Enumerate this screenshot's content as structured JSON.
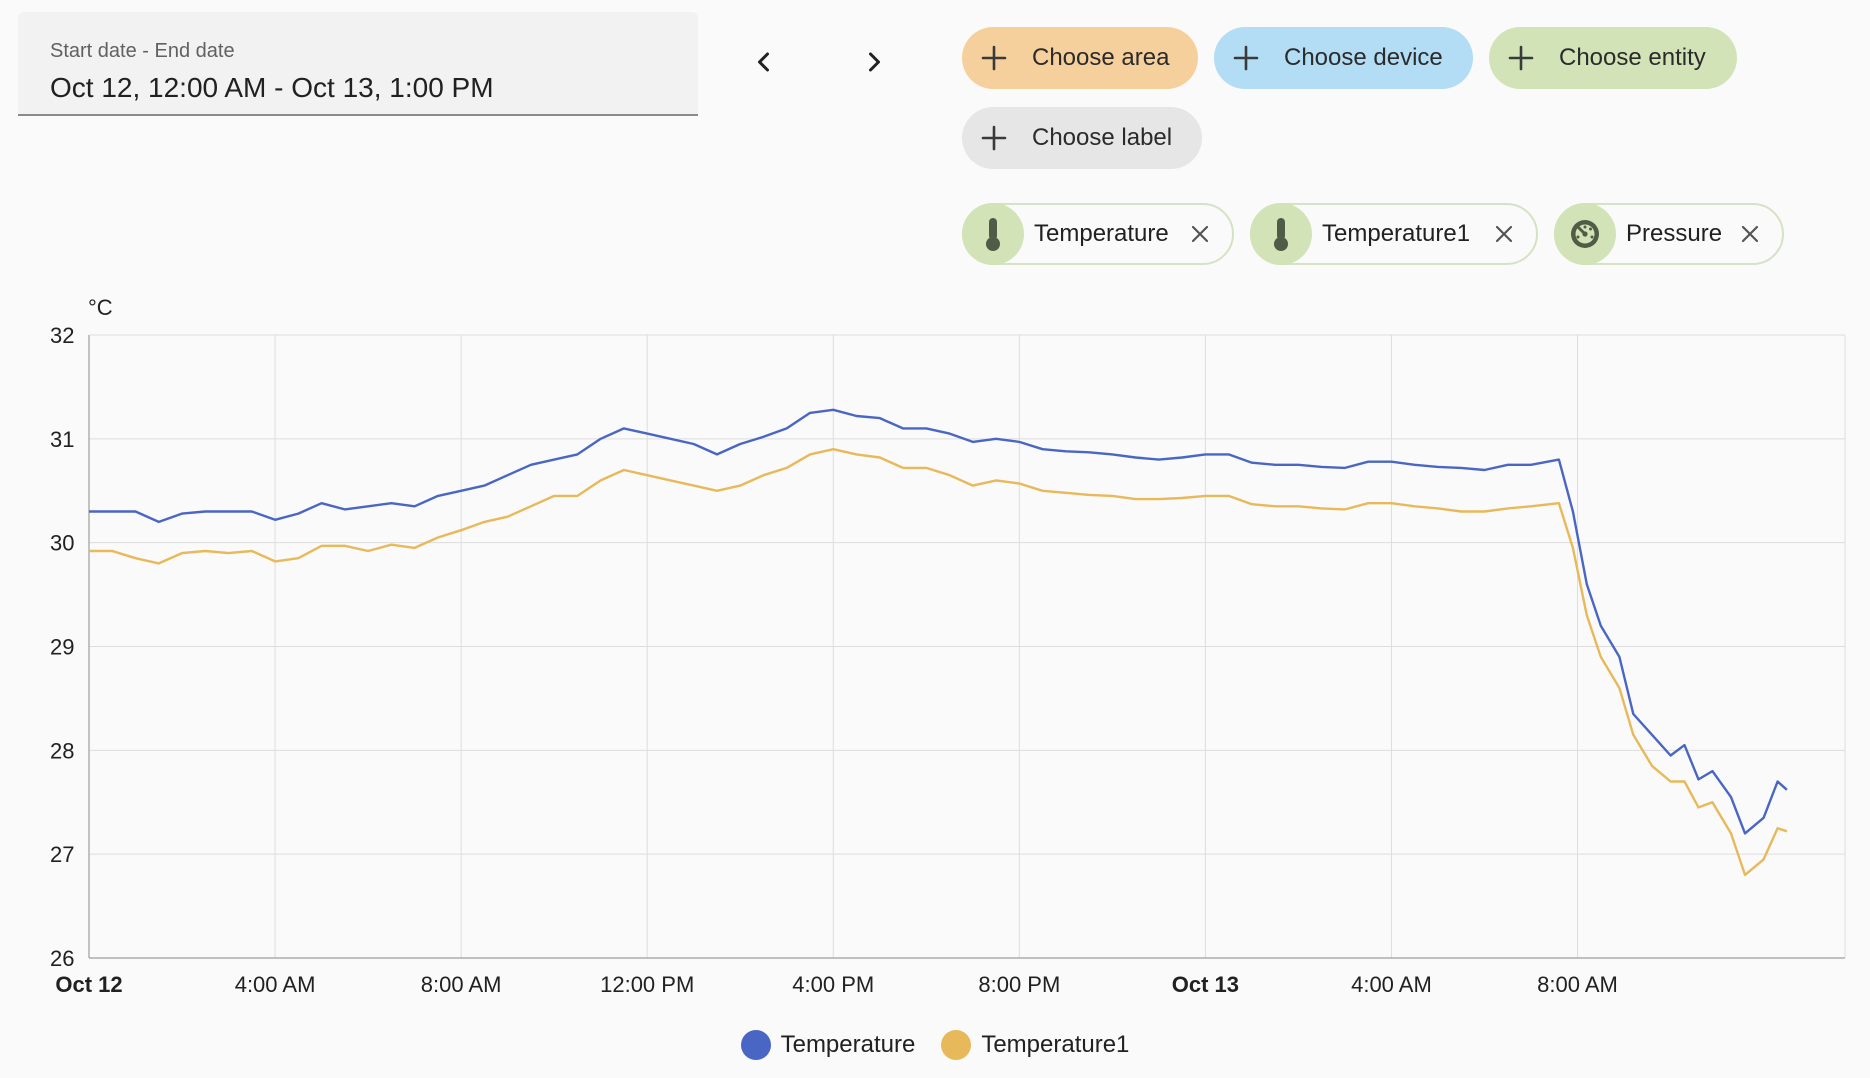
{
  "date_range": {
    "label": "Start date - End date",
    "value": "Oct 12, 12:00 AM - Oct 13, 1:00 PM"
  },
  "target_picker": {
    "choose_area": "Choose area",
    "choose_device": "Choose device",
    "choose_entity": "Choose entity",
    "choose_label": "Choose label"
  },
  "selected_entities": [
    {
      "label": "Temperature",
      "icon": "thermometer-icon"
    },
    {
      "label": "Temperature1",
      "icon": "thermometer-icon"
    },
    {
      "label": "Pressure",
      "icon": "gauge-icon"
    }
  ],
  "colors": {
    "area_chip": "#f6d09c",
    "device_chip": "#b3dcf5",
    "entity_chip": "#d2e3b8",
    "label_chip": "#e6e6e6",
    "series_temperature": "#4a66c4",
    "series_temperature1": "#e8b95a"
  },
  "chart_data": {
    "type": "line",
    "unit": "°C",
    "ylim": [
      26,
      32
    ],
    "yticks": [
      26,
      27,
      28,
      29,
      30,
      31,
      32
    ],
    "xlim_hours": [
      0,
      37.75
    ],
    "x_ticks": [
      {
        "hour": 0,
        "label": "Oct 12",
        "bold": true
      },
      {
        "hour": 4,
        "label": "4:00 AM",
        "bold": false
      },
      {
        "hour": 8,
        "label": "8:00 AM",
        "bold": false
      },
      {
        "hour": 12,
        "label": "12:00 PM",
        "bold": false
      },
      {
        "hour": 16,
        "label": "4:00 PM",
        "bold": false
      },
      {
        "hour": 20,
        "label": "8:00 PM",
        "bold": false
      },
      {
        "hour": 24,
        "label": "Oct 13",
        "bold": true
      },
      {
        "hour": 28,
        "label": "4:00 AM",
        "bold": false
      },
      {
        "hour": 32,
        "label": "8:00 AM",
        "bold": false
      }
    ],
    "grid": true,
    "legend_position": "bottom-center",
    "series": [
      {
        "name": "Temperature",
        "points": [
          [
            0,
            30.3
          ],
          [
            0.5,
            30.3
          ],
          [
            1.0,
            30.3
          ],
          [
            1.5,
            30.2
          ],
          [
            2.0,
            30.28
          ],
          [
            2.5,
            30.3
          ],
          [
            3.0,
            30.3
          ],
          [
            3.5,
            30.3
          ],
          [
            4.0,
            30.22
          ],
          [
            4.5,
            30.28
          ],
          [
            5.0,
            30.38
          ],
          [
            5.5,
            30.32
          ],
          [
            6.0,
            30.35
          ],
          [
            6.5,
            30.38
          ],
          [
            7.0,
            30.35
          ],
          [
            7.5,
            30.45
          ],
          [
            8.0,
            30.5
          ],
          [
            8.5,
            30.55
          ],
          [
            9.0,
            30.65
          ],
          [
            9.5,
            30.75
          ],
          [
            10.0,
            30.8
          ],
          [
            10.5,
            30.85
          ],
          [
            11.0,
            31.0
          ],
          [
            11.5,
            31.1
          ],
          [
            12.0,
            31.05
          ],
          [
            12.5,
            31.0
          ],
          [
            13.0,
            30.95
          ],
          [
            13.5,
            30.85
          ],
          [
            14.0,
            30.95
          ],
          [
            14.5,
            31.02
          ],
          [
            15.0,
            31.1
          ],
          [
            15.5,
            31.25
          ],
          [
            16.0,
            31.28
          ],
          [
            16.5,
            31.22
          ],
          [
            17.0,
            31.2
          ],
          [
            17.5,
            31.1
          ],
          [
            18.0,
            31.1
          ],
          [
            18.5,
            31.05
          ],
          [
            19.0,
            30.97
          ],
          [
            19.5,
            31.0
          ],
          [
            20.0,
            30.97
          ],
          [
            20.5,
            30.9
          ],
          [
            21.0,
            30.88
          ],
          [
            21.5,
            30.87
          ],
          [
            22.0,
            30.85
          ],
          [
            22.5,
            30.82
          ],
          [
            23.0,
            30.8
          ],
          [
            23.5,
            30.82
          ],
          [
            24.0,
            30.85
          ],
          [
            24.5,
            30.85
          ],
          [
            25.0,
            30.77
          ],
          [
            25.5,
            30.75
          ],
          [
            26.0,
            30.75
          ],
          [
            26.5,
            30.73
          ],
          [
            27.0,
            30.72
          ],
          [
            27.5,
            30.78
          ],
          [
            28.0,
            30.78
          ],
          [
            28.5,
            30.75
          ],
          [
            29.0,
            30.73
          ],
          [
            29.5,
            30.72
          ],
          [
            30.0,
            30.7
          ],
          [
            30.5,
            30.75
          ],
          [
            31.0,
            30.75
          ],
          [
            31.6,
            30.8
          ],
          [
            31.9,
            30.3
          ],
          [
            32.2,
            29.6
          ],
          [
            32.5,
            29.2
          ],
          [
            32.9,
            28.9
          ],
          [
            33.2,
            28.35
          ],
          [
            33.6,
            28.15
          ],
          [
            34.0,
            27.95
          ],
          [
            34.3,
            28.05
          ],
          [
            34.6,
            27.72
          ],
          [
            34.9,
            27.8
          ],
          [
            35.3,
            27.55
          ],
          [
            35.6,
            27.2
          ],
          [
            36.0,
            27.35
          ],
          [
            36.3,
            27.7
          ],
          [
            36.5,
            27.62
          ]
        ]
      },
      {
        "name": "Temperature1",
        "points": [
          [
            0,
            29.92
          ],
          [
            0.5,
            29.92
          ],
          [
            1.0,
            29.85
          ],
          [
            1.5,
            29.8
          ],
          [
            2.0,
            29.9
          ],
          [
            2.5,
            29.92
          ],
          [
            3.0,
            29.9
          ],
          [
            3.5,
            29.92
          ],
          [
            4.0,
            29.82
          ],
          [
            4.5,
            29.85
          ],
          [
            5.0,
            29.97
          ],
          [
            5.5,
            29.97
          ],
          [
            6.0,
            29.92
          ],
          [
            6.5,
            29.98
          ],
          [
            7.0,
            29.95
          ],
          [
            7.5,
            30.05
          ],
          [
            8.0,
            30.12
          ],
          [
            8.5,
            30.2
          ],
          [
            9.0,
            30.25
          ],
          [
            9.5,
            30.35
          ],
          [
            10.0,
            30.45
          ],
          [
            10.5,
            30.45
          ],
          [
            11.0,
            30.6
          ],
          [
            11.5,
            30.7
          ],
          [
            12.0,
            30.65
          ],
          [
            12.5,
            30.6
          ],
          [
            13.0,
            30.55
          ],
          [
            13.5,
            30.5
          ],
          [
            14.0,
            30.55
          ],
          [
            14.5,
            30.65
          ],
          [
            15.0,
            30.72
          ],
          [
            15.5,
            30.85
          ],
          [
            16.0,
            30.9
          ],
          [
            16.5,
            30.85
          ],
          [
            17.0,
            30.82
          ],
          [
            17.5,
            30.72
          ],
          [
            18.0,
            30.72
          ],
          [
            18.5,
            30.65
          ],
          [
            19.0,
            30.55
          ],
          [
            19.5,
            30.6
          ],
          [
            20.0,
            30.57
          ],
          [
            20.5,
            30.5
          ],
          [
            21.0,
            30.48
          ],
          [
            21.5,
            30.46
          ],
          [
            22.0,
            30.45
          ],
          [
            22.5,
            30.42
          ],
          [
            23.0,
            30.42
          ],
          [
            23.5,
            30.43
          ],
          [
            24.0,
            30.45
          ],
          [
            24.5,
            30.45
          ],
          [
            25.0,
            30.37
          ],
          [
            25.5,
            30.35
          ],
          [
            26.0,
            30.35
          ],
          [
            26.5,
            30.33
          ],
          [
            27.0,
            30.32
          ],
          [
            27.5,
            30.38
          ],
          [
            28.0,
            30.38
          ],
          [
            28.5,
            30.35
          ],
          [
            29.0,
            30.33
          ],
          [
            29.5,
            30.3
          ],
          [
            30.0,
            30.3
          ],
          [
            30.5,
            30.33
          ],
          [
            31.0,
            30.35
          ],
          [
            31.6,
            30.38
          ],
          [
            31.9,
            29.95
          ],
          [
            32.2,
            29.3
          ],
          [
            32.5,
            28.9
          ],
          [
            32.9,
            28.6
          ],
          [
            33.2,
            28.15
          ],
          [
            33.6,
            27.85
          ],
          [
            34.0,
            27.7
          ],
          [
            34.3,
            27.7
          ],
          [
            34.6,
            27.45
          ],
          [
            34.9,
            27.5
          ],
          [
            35.3,
            27.2
          ],
          [
            35.6,
            26.8
          ],
          [
            36.0,
            26.95
          ],
          [
            36.3,
            27.25
          ],
          [
            36.5,
            27.22
          ]
        ]
      }
    ]
  }
}
